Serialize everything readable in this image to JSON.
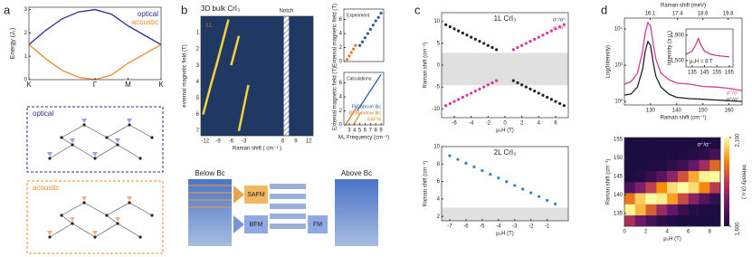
{
  "figure": {
    "panel_labels": [
      "a",
      "b",
      "c",
      "d"
    ],
    "diagram_a": [
      "optical",
      "acoustic"
    ],
    "diagram_b": [
      "Below Bc",
      "SAFM",
      "BFM",
      "FM",
      "Above Bc"
    ]
  },
  "chart_data": [
    {
      "type": "line",
      "ylabel": "Energy (J₁)",
      "xlim": [
        0,
        2
      ],
      "ylim": [
        0,
        3.1
      ],
      "yticks": [
        0,
        1,
        2,
        3
      ],
      "xticks": [
        {
          "value": 0,
          "label": "K"
        },
        {
          "value": 1,
          "label": "Γ"
        },
        {
          "value": 1.5,
          "label": "M"
        },
        {
          "value": 2,
          "label": "K"
        }
      ],
      "x": [
        0,
        0.25,
        0.5,
        0.75,
        1,
        1.25,
        1.5,
        1.75,
        2
      ],
      "legend": "upper right",
      "series": [
        {
          "name": "optical",
          "color": "#2b2b8f",
          "values": [
            1.5,
            2.1,
            2.6,
            2.9,
            3,
            2.8,
            2.3,
            1.9,
            1.5
          ]
        },
        {
          "name": "acoustic",
          "color": "#f08a2c",
          "values": [
            1.5,
            0.9,
            0.4,
            0.1,
            0,
            0.2,
            0.7,
            1.1,
            1.5
          ]
        }
      ]
    },
    {
      "type": "line",
      "title": "3D bulk CrI₃",
      "xlabel": "Raman shift ( cm⁻¹ )",
      "ylabel": "external magnetic field (T)",
      "background": "#203864",
      "annotations": [
        "LL",
        "Notch"
      ],
      "notch": [
        6.2,
        7.4
      ],
      "xlim": [
        -13,
        13
      ],
      "ylim": [
        7.3,
        0
      ],
      "xticks": [
        -12,
        -9,
        -6,
        -3,
        6,
        9,
        12
      ],
      "yticks": [
        1,
        2,
        3,
        4,
        5,
        6,
        7
      ],
      "series": [
        {
          "color": "#f5d33b",
          "x": [
            -12.5,
            -10.8,
            -9.2
          ],
          "values": [
            6,
            4.3,
            2.8
          ]
        },
        {
          "color": "#f5d33b",
          "x": [
            -9.5,
            -8,
            -6.6
          ],
          "values": [
            3.1,
            1.6,
            0.2
          ]
        },
        {
          "color": "#f5d33b",
          "x": [
            -4.2,
            -3.1,
            -2
          ],
          "values": [
            7,
            5.6,
            4.2
          ]
        },
        {
          "color": "#f5d33b",
          "x": [
            -6,
            -5,
            -4.2
          ],
          "values": [
            3,
            2,
            1.2
          ]
        }
      ]
    },
    {
      "type": "scatter",
      "title": "Experiment",
      "ylabel": "External magnetic field (T)",
      "xlim": [
        2,
        9.5
      ],
      "ylim": [
        0,
        7.5
      ],
      "yticks": [
        0,
        2,
        4,
        6
      ],
      "series": [
        {
          "color": "#e07b1f",
          "x": [
            2.6,
            3.0,
            3.4,
            3.8,
            4.2
          ],
          "values": [
            0.3,
            0.8,
            1.3,
            1.8,
            2.3
          ]
        },
        {
          "color": "#2a5caa",
          "x": [
            5,
            5.5,
            6,
            6.5,
            7,
            7.5,
            8,
            8.5,
            9
          ],
          "values": [
            2.3,
            2.8,
            3.4,
            4,
            4.6,
            5.2,
            5.8,
            6.3,
            6.9
          ]
        }
      ]
    },
    {
      "type": "line",
      "title": "Calculations",
      "ylabel": "External magnetic field (T)",
      "xlabel": "M₀ Frequency (cm⁻¹)",
      "xlim": [
        2,
        9.5
      ],
      "ylim": [
        0,
        7.5
      ],
      "yticks": [
        0,
        2,
        4,
        6
      ],
      "xticks": [
        3,
        4,
        5,
        6,
        7,
        8,
        9
      ],
      "legend": "lower right",
      "series": [
        {
          "name": "FM above Bc",
          "color": "#2a5caa",
          "x": [
            4.5,
            9
          ],
          "values": [
            2,
            7.2
          ]
        },
        {
          "name": "BFM below Bc",
          "color": "#e07b1f",
          "x": [
            2.3,
            4.4
          ],
          "values": [
            0,
            2.5
          ]
        },
        {
          "name": "SAFM",
          "color": "#c8a030",
          "x": [
            3.8,
            5.2
          ],
          "values": [
            0,
            1.8
          ]
        }
      ]
    },
    {
      "type": "scatter",
      "title": "1L CrI₃",
      "xlabel": "μ₀H (T)",
      "ylabel": "Raman shift (cm⁻¹)",
      "xlim": [
        -7.5,
        7.5
      ],
      "ylim": [
        -12,
        12
      ],
      "xticks": [
        -6,
        -4,
        -2,
        0,
        2,
        4,
        6
      ],
      "yticks": [
        -10,
        -5,
        0,
        5,
        10
      ],
      "band": [
        -4.6,
        2.8
      ],
      "legend": "upper right",
      "series": [
        {
          "name": "σ⁺/σ⁺",
          "color": "#222222",
          "x": [
            -7,
            -6.5,
            -6,
            -5.5,
            -5,
            -4.5,
            -4,
            -3.5,
            -3,
            -2.5,
            -2,
            -1.5,
            -1,
            1,
            1.5,
            2,
            2.5,
            3,
            3.5,
            4,
            4.5,
            5,
            5.5,
            6,
            6.5,
            7
          ],
          "values": [
            9.25,
            8.78,
            8.3,
            7.83,
            7.35,
            6.88,
            6.4,
            5.93,
            5.45,
            4.98,
            4.5,
            4.03,
            3.55,
            -3.55,
            -4.03,
            -4.5,
            -4.98,
            -5.45,
            -5.93,
            -6.4,
            -6.88,
            -7.35,
            -7.83,
            -8.3,
            -8.78,
            -9.25
          ]
        },
        {
          "name": "σ⁻/σ⁻",
          "color": "#d63a9a",
          "x": [
            -7,
            -6.5,
            -6,
            -5.5,
            -5,
            -4.5,
            -4,
            -3.5,
            -3,
            -2.5,
            -2,
            -1.5,
            -1,
            1,
            1.5,
            2,
            2.5,
            3,
            3.5,
            4,
            4.5,
            5,
            5.5,
            6,
            6.5,
            7
          ],
          "values": [
            -9.25,
            -8.78,
            -8.3,
            -7.83,
            -7.35,
            -6.88,
            -6.4,
            -5.93,
            -5.45,
            -4.98,
            -4.5,
            -4.03,
            -3.55,
            3.55,
            4.03,
            4.5,
            4.98,
            5.45,
            5.93,
            6.4,
            6.88,
            7.35,
            7.83,
            8.3,
            8.78,
            9.25
          ]
        }
      ]
    },
    {
      "type": "scatter",
      "title": "2L CrI₃",
      "xlabel": "μ₀H (T)",
      "ylabel": "Raman shift (cm⁻¹)",
      "xlim": [
        -7.5,
        0.3
      ],
      "ylim": [
        1.5,
        10
      ],
      "xticks": [
        -7,
        -6,
        -5,
        -4,
        -3,
        -2,
        -1
      ],
      "yticks": [
        2,
        4,
        6,
        8,
        10
      ],
      "band": [
        1.5,
        3
      ],
      "series": [
        {
          "color": "#2e86c1",
          "x": [
            -7,
            -6.5,
            -6,
            -5.5,
            -5,
            -4.5,
            -4,
            -3.5,
            -3,
            -2.5,
            -2,
            -1.5,
            -1,
            -0.5
          ],
          "values": [
            8.95,
            8.53,
            8.1,
            7.68,
            7.25,
            6.83,
            6.4,
            5.98,
            5.55,
            5.13,
            4.7,
            4.28,
            3.85,
            3.43
          ]
        }
      ]
    },
    {
      "type": "line",
      "xlabel": "Raman shift (cm⁻¹)",
      "x2label": "Raman shift (meV)",
      "ylabel": "Log(Intensity)",
      "ylog": true,
      "xlim": [
        120,
        165
      ],
      "ylim": [
        80,
        20000
      ],
      "xticks": [
        130,
        140,
        150,
        160
      ],
      "x2lim": [
        14.88,
        20.46
      ],
      "x2ticks": [
        16.1,
        17.4,
        18.6,
        19.8
      ],
      "yticks": [
        {
          "value": 100,
          "label": "10²"
        },
        {
          "value": 1000,
          "label": "10³"
        },
        {
          "value": 10000,
          "label": "10⁴"
        }
      ],
      "legend": "lower right",
      "x": [
        120,
        122.5,
        125,
        127,
        128,
        129,
        130,
        131,
        132,
        134,
        137,
        140,
        145,
        150,
        155,
        160,
        165
      ],
      "series": [
        {
          "name": "σ⁺/σ⁻",
          "color": "#d63a9a",
          "values": [
            300,
            350,
            600,
            2500,
            8000,
            15000,
            12000,
            4000,
            1500,
            600,
            400,
            320,
            300,
            260,
            250,
            230,
            200
          ]
        },
        {
          "name": "σ⁺/σ⁺",
          "color": "#222222",
          "values": [
            150,
            160,
            250,
            800,
            2500,
            4500,
            3500,
            1200,
            500,
            250,
            160,
            130,
            120,
            115,
            110,
            105,
            100
          ]
        }
      ]
    },
    {
      "type": "line",
      "ylabel": "Intensity (a.u.)",
      "annotations": [
        "μ₀H = 8 T"
      ],
      "xlim": [
        130,
        168
      ],
      "ylim": [
        1400,
        2000
      ],
      "xticks": [
        135,
        145,
        155,
        165
      ],
      "yticks": [
        {
          "value": 1500,
          "label": "1,500"
        },
        {
          "value": 1900,
          "label": "1,900"
        }
      ],
      "x": [
        130,
        135,
        138,
        140,
        142,
        145,
        150,
        155,
        160,
        165
      ],
      "series": [
        {
          "color": "#c2408a",
          "values": [
            1600,
            1650,
            1750,
            1850,
            1750,
            1650,
            1600,
            1580,
            1570,
            1560
          ]
        }
      ]
    },
    {
      "type": "heatmap",
      "xlabel": "μ₀H (T)",
      "ylabel": "Raman shift (cm⁻¹)",
      "zlabel": "Intensity (a.u.)",
      "annotations": [
        "σ⁺/σ⁻"
      ],
      "xlim": [
        0,
        9
      ],
      "ylim": [
        131.5,
        155.5
      ],
      "xticks": [
        0,
        2,
        4,
        6,
        8
      ],
      "yticks": [
        135,
        140,
        145,
        150,
        155
      ],
      "zlim": [
        1600,
        2100
      ],
      "zticks": [
        {
          "value": 1600,
          "label": "1,600"
        },
        {
          "value": 2100,
          "label": "2,100"
        }
      ],
      "x": [
        0.5,
        1.5,
        2.5,
        3.5,
        4.5,
        5.5,
        6.5,
        7.5,
        8.5
      ],
      "y": [
        133,
        136,
        139,
        142,
        145,
        148,
        151,
        154
      ],
      "z": [
        [
          1825,
          1730,
          1665,
          1625,
          1610,
          1600,
          1600,
          1600,
          1600
        ],
        [
          2090,
          2020,
          1910,
          1800,
          1710,
          1650,
          1620,
          1605,
          1600
        ],
        [
          1945,
          2045,
          2100,
          2080,
          1995,
          1880,
          1770,
          1690,
          1640
        ],
        [
          1680,
          1755,
          1860,
          1975,
          2065,
          2100,
          2060,
          1965,
          1850
        ],
        [
          1605,
          1615,
          1645,
          1695,
          1780,
          1890,
          2005,
          2085,
          2095
        ],
        [
          1600,
          1600,
          1605,
          1610,
          1625,
          1655,
          1715,
          1810,
          1920
        ],
        [
          1600,
          1600,
          1600,
          1600,
          1600,
          1605,
          1615,
          1630,
          1670
        ],
        [
          1600,
          1600,
          1600,
          1600,
          1600,
          1600,
          1600,
          1600,
          1600
        ]
      ]
    }
  ]
}
